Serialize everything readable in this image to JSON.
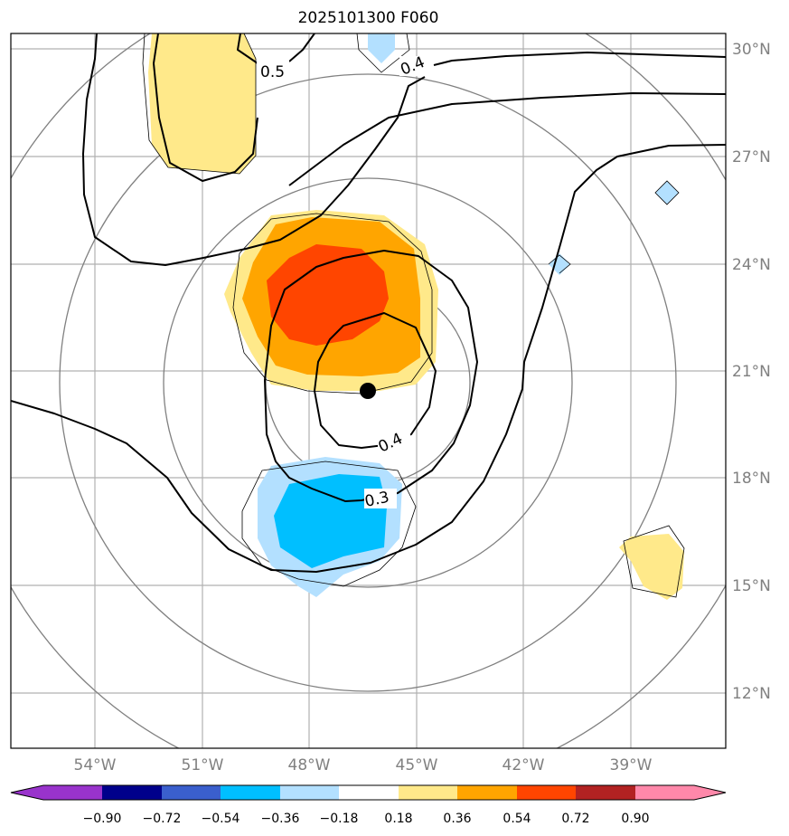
{
  "title": "2025101300 F060",
  "lat_labels": [
    "30°N",
    "27°N",
    "24°N",
    "21°N",
    "18°N",
    "15°N",
    "12°N"
  ],
  "lon_labels": [
    "54°W",
    "51°W",
    "48°W",
    "45°W",
    "42°W",
    "39°W"
  ],
  "contour_labels": [
    "0.5",
    "0.4",
    "0.4",
    "0.3"
  ],
  "colorbar": {
    "ticks": [
      "−0.90",
      "−0.72",
      "−0.54",
      "−0.36",
      "−0.18",
      "0.18",
      "0.36",
      "0.54",
      "0.72",
      "0.90"
    ],
    "colors": [
      "#9933cc",
      "#00008b",
      "#3a5fcd",
      "#00bfff",
      "#b3e0ff",
      "#ffffff",
      "#ffe98a",
      "#ffa500",
      "#ff4500",
      "#b22222",
      "#ff88aa"
    ]
  },
  "fill_colors": {
    "pos1": "#ffe98a",
    "pos2": "#ffa500",
    "pos3": "#ff4500",
    "neg1": "#b3e0ff",
    "neg2": "#00bfff"
  },
  "center_marker": "storm-center-dot"
}
